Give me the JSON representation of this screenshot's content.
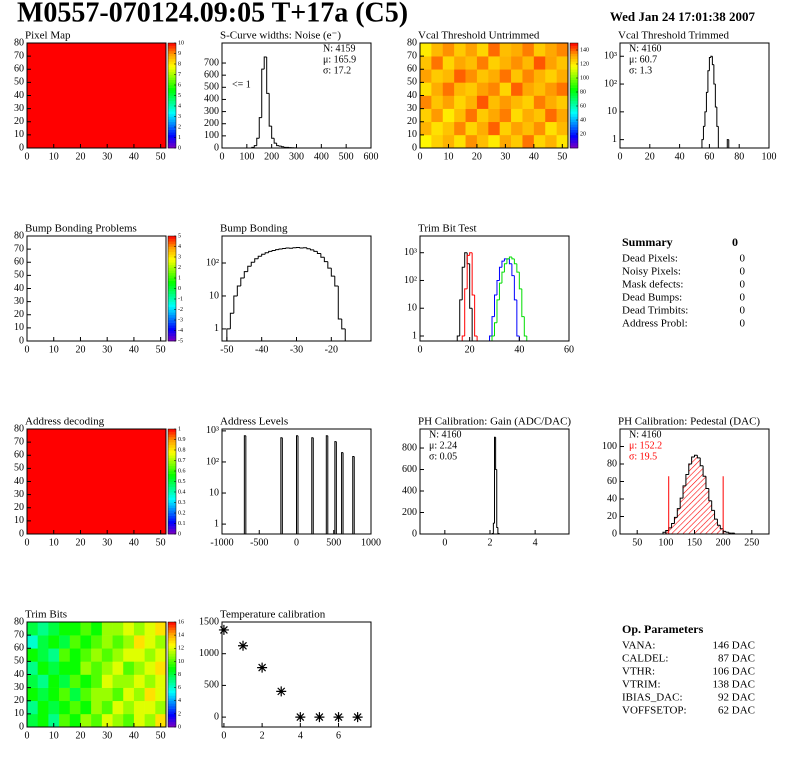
{
  "header": {
    "title": "M0557-070124.09:05 T+17a (C5)",
    "date": "Wed Jan 24 17:01:38 2007"
  },
  "palette": [
    "#8000c0",
    "#0000ff",
    "#0080ff",
    "#00ffff",
    "#00ff80",
    "#00ff00",
    "#80ff00",
    "#ffff00",
    "#ffa000",
    "#ff0000"
  ],
  "chart_data": [
    {
      "type": "heatmap",
      "title": "Pixel Map",
      "xlim": [
        0,
        52
      ],
      "xticks": [
        0,
        10,
        20,
        30,
        40,
        50
      ],
      "ylim": [
        0,
        80
      ],
      "yticks": [
        0,
        10,
        20,
        30,
        40,
        50,
        60,
        70,
        80
      ],
      "z": [
        [
          10
        ]
      ],
      "zlim": [
        0,
        10
      ],
      "zticks": [
        0,
        1,
        2,
        3,
        4,
        5,
        6,
        7,
        8,
        9,
        10
      ]
    },
    {
      "type": "histogram",
      "title": "S-Curve widths: Noise (e⁻)",
      "xlim": [
        0,
        600
      ],
      "xticks": [
        0,
        100,
        200,
        300,
        400,
        500,
        600
      ],
      "ylim": [
        0,
        865
      ],
      "yticks": [
        0,
        100,
        200,
        300,
        400,
        500,
        600,
        700
      ],
      "bins": [
        100,
        110,
        120,
        130,
        140,
        150,
        160,
        170,
        180,
        190,
        200,
        210,
        220,
        230,
        240,
        250,
        260,
        270,
        280,
        290,
        300
      ],
      "series": [
        {
          "color": "#000000",
          "values": [
            0,
            0,
            5,
            20,
            80,
            250,
            650,
            750,
            450,
            180,
            80,
            40,
            20,
            15,
            10,
            5,
            5,
            3,
            2,
            1
          ]
        }
      ],
      "stats": [
        {
          "text": "N: 4159",
          "color": "#000000"
        },
        {
          "text": "μ: 165.9",
          "color": "#000000"
        },
        {
          "text": "σ: 17.2",
          "color": "#000000"
        }
      ],
      "stats_corner": "top-right",
      "annotation": "<= 1"
    },
    {
      "type": "heatmap",
      "title": "Vcal Threshold Untrimmed",
      "xlim": [
        0,
        52
      ],
      "xticks": [
        0,
        10,
        20,
        30,
        40,
        50
      ],
      "ylim": [
        0,
        80
      ],
      "yticks": [
        0,
        10,
        20,
        30,
        40,
        50,
        60,
        70,
        80
      ],
      "z": [
        [
          118,
          125,
          130,
          122,
          135,
          128,
          120,
          132,
          126,
          138,
          124,
          130,
          121
        ],
        [
          130,
          122,
          127,
          136,
          124,
          131,
          140,
          125,
          133,
          128,
          135,
          122,
          129
        ],
        [
          125,
          134,
          120,
          128,
          138,
          126,
          132,
          137,
          123,
          131,
          127,
          139,
          132
        ],
        [
          136,
          127,
          133,
          124,
          130,
          141,
          128,
          134,
          129,
          125,
          137,
          131,
          126
        ],
        [
          122,
          131,
          138,
          129,
          126,
          133,
          136,
          124,
          140,
          132,
          128,
          134,
          138
        ],
        [
          133,
          126,
          129,
          140,
          135,
          127,
          131,
          138,
          127,
          136,
          130,
          125,
          131
        ],
        [
          127,
          138,
          124,
          132,
          128,
          137,
          125,
          130,
          135,
          129,
          141,
          133,
          127
        ],
        [
          120,
          129,
          135,
          126,
          133,
          124,
          139,
          128,
          131,
          137,
          126,
          132,
          136
        ]
      ],
      "zlim": [
        0,
        150
      ],
      "zticks": [
        20,
        40,
        60,
        80,
        100,
        120,
        140
      ]
    },
    {
      "type": "histogram",
      "title": "Vcal Threshold Trimmed",
      "log_y": true,
      "xlim": [
        0,
        100
      ],
      "xticks": [
        0,
        20,
        40,
        60,
        80,
        100
      ],
      "ylim": [
        0.5,
        3000
      ],
      "yticks": [
        1,
        10,
        {
          "value": 100,
          "label": "10²"
        },
        {
          "value": 1000,
          "label": "10³"
        }
      ],
      "bins": [
        50,
        51,
        52,
        53,
        54,
        55,
        56,
        57,
        58,
        59,
        60,
        61,
        62,
        63,
        64,
        65,
        66,
        67,
        68,
        69,
        70,
        71,
        72,
        73,
        74,
        75
      ],
      "series": [
        {
          "color": "#000000",
          "values": [
            0,
            0,
            0,
            0,
            0,
            1,
            3,
            10,
            50,
            300,
            900,
            1000,
            500,
            100,
            15,
            3,
            0,
            0,
            0,
            0,
            0,
            0,
            1,
            0,
            0
          ]
        }
      ],
      "stats": [
        {
          "text": "N: 4160",
          "color": "#000000"
        },
        {
          "text": "μ: 60.7",
          "color": "#000000"
        },
        {
          "text": "σ:  1.3",
          "color": "#000000"
        }
      ],
      "stats_corner": "top-left"
    },
    {
      "type": "heatmap",
      "title": "Bump Bonding Problems",
      "xlim": [
        0,
        52
      ],
      "xticks": [
        0,
        10,
        20,
        30,
        40,
        50
      ],
      "ylim": [
        0,
        80
      ],
      "yticks": [
        0,
        10,
        20,
        30,
        40,
        50,
        60,
        70,
        80
      ],
      "z": [],
      "zlim": [
        -5,
        5
      ],
      "zticks": [
        -5,
        -4,
        -3,
        -2,
        -1,
        0,
        1,
        2,
        3,
        4,
        5
      ]
    },
    {
      "type": "histogram",
      "title": "Bump Bonding",
      "log_y": true,
      "xlim": [
        -51.4,
        -8.6
      ],
      "xticks": [
        -50,
        -40,
        -30,
        -20
      ],
      "ylim": [
        0.43,
        660
      ],
      "yticks": [
        1,
        10,
        {
          "value": 100,
          "label": "10²"
        }
      ],
      "bins": [
        -50,
        -49,
        -48,
        -47,
        -46,
        -45,
        -44,
        -43,
        -42,
        -41,
        -40,
        -39,
        -38,
        -37,
        -36,
        -35,
        -34,
        -33,
        -32,
        -31,
        -30,
        -29,
        -28,
        -27,
        -26,
        -25,
        -24,
        -23,
        -22,
        -21,
        -20,
        -19,
        -18,
        -17,
        -16,
        -15
      ],
      "series": [
        {
          "color": "#000000",
          "values": [
            1,
            3,
            10,
            20,
            35,
            55,
            80,
            105,
            135,
            160,
            185,
            205,
            225,
            240,
            255,
            265,
            275,
            285,
            280,
            290,
            295,
            285,
            290,
            270,
            250,
            225,
            195,
            150,
            110,
            70,
            40,
            20,
            2,
            1,
            0
          ]
        }
      ]
    },
    {
      "type": "histogram",
      "title": "Trim Bit Test",
      "log_y": true,
      "xlim": [
        0,
        60
      ],
      "xticks": [
        0,
        20,
        40,
        60
      ],
      "ylim": [
        0.66,
        4000
      ],
      "yticks": [
        1,
        10,
        {
          "value": 100,
          "label": "10²"
        },
        {
          "value": 1000,
          "label": "10³"
        }
      ],
      "bins": [
        12,
        13,
        14,
        15,
        16,
        17,
        18,
        19,
        20,
        21,
        22,
        23,
        24,
        25,
        26,
        27,
        28,
        29,
        30,
        31,
        32,
        33,
        34,
        35,
        36,
        37,
        38,
        39,
        40,
        41,
        42,
        43,
        44
      ],
      "series": [
        {
          "color": "#000000",
          "values": [
            0,
            0,
            0,
            1,
            20,
            300,
            1000,
            400,
            10,
            0,
            0,
            0,
            0,
            0,
            0,
            0,
            0,
            0,
            0,
            0,
            0,
            0,
            0,
            0,
            0,
            0,
            0,
            0,
            0,
            0,
            0,
            0
          ]
        },
        {
          "color": "#ff0000",
          "values": [
            0,
            0,
            0,
            0,
            0,
            1,
            50,
            800,
            1000,
            30,
            1,
            0,
            0,
            0,
            0,
            0,
            0,
            0,
            0,
            0,
            0,
            0,
            0,
            0,
            0,
            0,
            0,
            0,
            0,
            0,
            0,
            0
          ]
        },
        {
          "color": "#0000ff",
          "values": [
            0,
            0,
            0,
            0,
            0,
            0,
            0,
            0,
            0,
            0,
            0,
            0,
            0,
            0,
            0,
            0,
            1,
            5,
            30,
            100,
            300,
            500,
            600,
            600,
            400,
            150,
            20,
            1,
            0,
            0,
            0,
            0
          ]
        },
        {
          "color": "#00dd00",
          "values": [
            0,
            0,
            0,
            0,
            0,
            0,
            0,
            0,
            0,
            0,
            0,
            0,
            0,
            0,
            0,
            0,
            0,
            1,
            3,
            20,
            80,
            200,
            400,
            600,
            700,
            600,
            400,
            200,
            50,
            5,
            1,
            0
          ]
        }
      ]
    },
    {
      "type": "heatmap",
      "title": "Address decoding",
      "xlim": [
        0,
        52
      ],
      "xticks": [
        0,
        10,
        20,
        30,
        40,
        50
      ],
      "ylim": [
        0,
        80
      ],
      "yticks": [
        0,
        10,
        20,
        30,
        40,
        50,
        60,
        70,
        80
      ],
      "z": [
        [
          1
        ]
      ],
      "zlim": [
        0,
        1
      ],
      "zticks": [
        0,
        0.1,
        0.2,
        0.3,
        0.4,
        0.5,
        0.6,
        0.7,
        0.8,
        0.9,
        1
      ]
    },
    {
      "type": "histogram",
      "title": "Address Levels",
      "log_y": true,
      "xlim": [
        -1000,
        1000
      ],
      "xticks": [
        -1000,
        -500,
        0,
        500,
        1000
      ],
      "ylim": [
        0.48,
        1150
      ],
      "yticks": [
        1,
        10,
        {
          "value": 100,
          "label": "10²"
        },
        {
          "value": 1000,
          "label": "10³"
        }
      ],
      "bins": [
        -1000,
        -700,
        -680,
        -210,
        -190,
        0,
        20,
        205,
        225,
        400,
        420,
        515,
        535,
        605,
        625,
        755,
        775,
        1000
      ],
      "series": [
        {
          "color": "#000000",
          "values": [
            0,
            700,
            0,
            600,
            0,
            700,
            0,
            600,
            0,
            700,
            0,
            450,
            0,
            200,
            0,
            150,
            0
          ]
        }
      ]
    },
    {
      "type": "histogram",
      "title": "PH Calibration: Gain (ADC/DAC)",
      "xlim": [
        -1.1,
        5.5
      ],
      "xticks": [
        0,
        2,
        4
      ],
      "ylim": [
        0,
        977
      ],
      "yticks": [
        0,
        200,
        400,
        600,
        800
      ],
      "bins": [
        2.1,
        2.15,
        2.2,
        2.25,
        2.3,
        2.35,
        2.4
      ],
      "series": [
        {
          "color": "#000000",
          "values": [
            5,
            100,
            900,
            600,
            60,
            5
          ]
        }
      ],
      "stats": [
        {
          "text": "N: 4160",
          "color": "#000000"
        },
        {
          "text": "μ: 2.24",
          "color": "#000000"
        },
        {
          "text": "σ: 0.05",
          "color": "#000000"
        }
      ],
      "stats_corner": "top-left"
    },
    {
      "type": "histogram",
      "title": "PH Calibration: Pedestal (DAC)",
      "xlim": [
        20,
        280
      ],
      "xticks": [
        50,
        100,
        150,
        200,
        250
      ],
      "ylim": [
        0,
        120
      ],
      "yticks": [
        0,
        20,
        40,
        60,
        80,
        100
      ],
      "bins": [
        95,
        100,
        105,
        110,
        115,
        120,
        125,
        130,
        135,
        140,
        145,
        150,
        155,
        160,
        165,
        170,
        175,
        180,
        185,
        190,
        195,
        200,
        205,
        210,
        215,
        220,
        225
      ],
      "series": [
        {
          "color": "#ff0000",
          "line_color": "#000000",
          "fill": "hatch",
          "values": [
            2,
            4,
            7,
            12,
            19,
            29,
            41,
            55,
            68,
            80,
            88,
            90,
            87,
            78,
            66,
            52,
            38,
            27,
            17,
            10,
            6,
            3,
            2,
            1,
            1,
            0
          ]
        }
      ],
      "cuts": [
        105,
        200
      ],
      "cut_color": "#ff0000",
      "stats": [
        {
          "text": "N: 4160",
          "color": "#000000"
        },
        {
          "text": "μ: 152.2",
          "color": "#ff0000"
        },
        {
          "text": "σ: 19.5",
          "color": "#ff0000"
        }
      ],
      "stats_corner": "top-left"
    },
    {
      "type": "heatmap",
      "title": "Trim Bits",
      "xlim": [
        0,
        52
      ],
      "xticks": [
        0,
        10,
        20,
        30,
        40,
        50
      ],
      "ylim": [
        0,
        80
      ],
      "yticks": [
        0,
        10,
        20,
        30,
        40,
        50,
        60,
        70,
        80
      ],
      "z": [
        [
          8,
          9,
          7,
          10,
          9,
          11,
          10,
          12,
          11,
          10,
          12,
          11,
          13
        ],
        [
          7,
          9,
          8,
          9,
          10,
          9,
          11,
          10,
          12,
          11,
          12,
          12,
          11
        ],
        [
          9,
          8,
          9,
          10,
          8,
          10,
          11,
          11,
          10,
          12,
          11,
          13,
          12
        ],
        [
          8,
          7,
          9,
          8,
          10,
          9,
          10,
          12,
          11,
          11,
          12,
          11,
          12
        ],
        [
          7,
          9,
          8,
          9,
          9,
          11,
          10,
          11,
          12,
          10,
          11,
          12,
          13
        ],
        [
          9,
          8,
          7,
          10,
          9,
          10,
          11,
          10,
          11,
          12,
          12,
          11,
          12
        ],
        [
          6,
          8,
          9,
          8,
          10,
          9,
          10,
          11,
          10,
          11,
          13,
          12,
          11
        ],
        [
          8,
          7,
          8,
          9,
          9,
          10,
          9,
          11,
          11,
          12,
          11,
          12,
          13
        ]
      ],
      "zlim": [
        0,
        16
      ],
      "zticks": [
        0,
        2,
        4,
        6,
        8,
        10,
        12,
        14,
        16
      ]
    },
    {
      "type": "scatter",
      "title": "Temperature calibration",
      "xlim": [
        -0.1,
        7.7
      ],
      "xticks": [
        0,
        2,
        4,
        6
      ],
      "ylim": [
        -156,
        1500
      ],
      "yticks": [
        0,
        500,
        1000,
        1500
      ],
      "x": [
        0,
        1,
        2,
        3,
        4,
        5,
        6,
        7
      ],
      "values": [
        1375,
        1125,
        781,
        406,
        0,
        0,
        0,
        0
      ],
      "color": "#000000"
    }
  ],
  "summary": {
    "title": "Summary",
    "value": 0,
    "rows": [
      {
        "label": "Dead Pixels:",
        "value": 0
      },
      {
        "label": "Noisy Pixels:",
        "value": 0
      },
      {
        "label": "Mask defects:",
        "value": 0
      },
      {
        "label": "Dead Bumps:",
        "value": 0
      },
      {
        "label": "Dead Trimbits:",
        "value": 0
      },
      {
        "label": "Address Probl:",
        "value": 0
      }
    ]
  },
  "op_parameters": {
    "title": "Op. Parameters",
    "rows": [
      {
        "label": "VANA:",
        "value": "146 DAC"
      },
      {
        "label": "CALDEL:",
        "value": "87 DAC"
      },
      {
        "label": "VTHR:",
        "value": "106 DAC"
      },
      {
        "label": "VTRIM:",
        "value": "138 DAC"
      },
      {
        "label": "IBIAS_DAC:",
        "value": "92 DAC"
      },
      {
        "label": "VOFFSETOP:",
        "value": "62 DAC"
      }
    ]
  }
}
